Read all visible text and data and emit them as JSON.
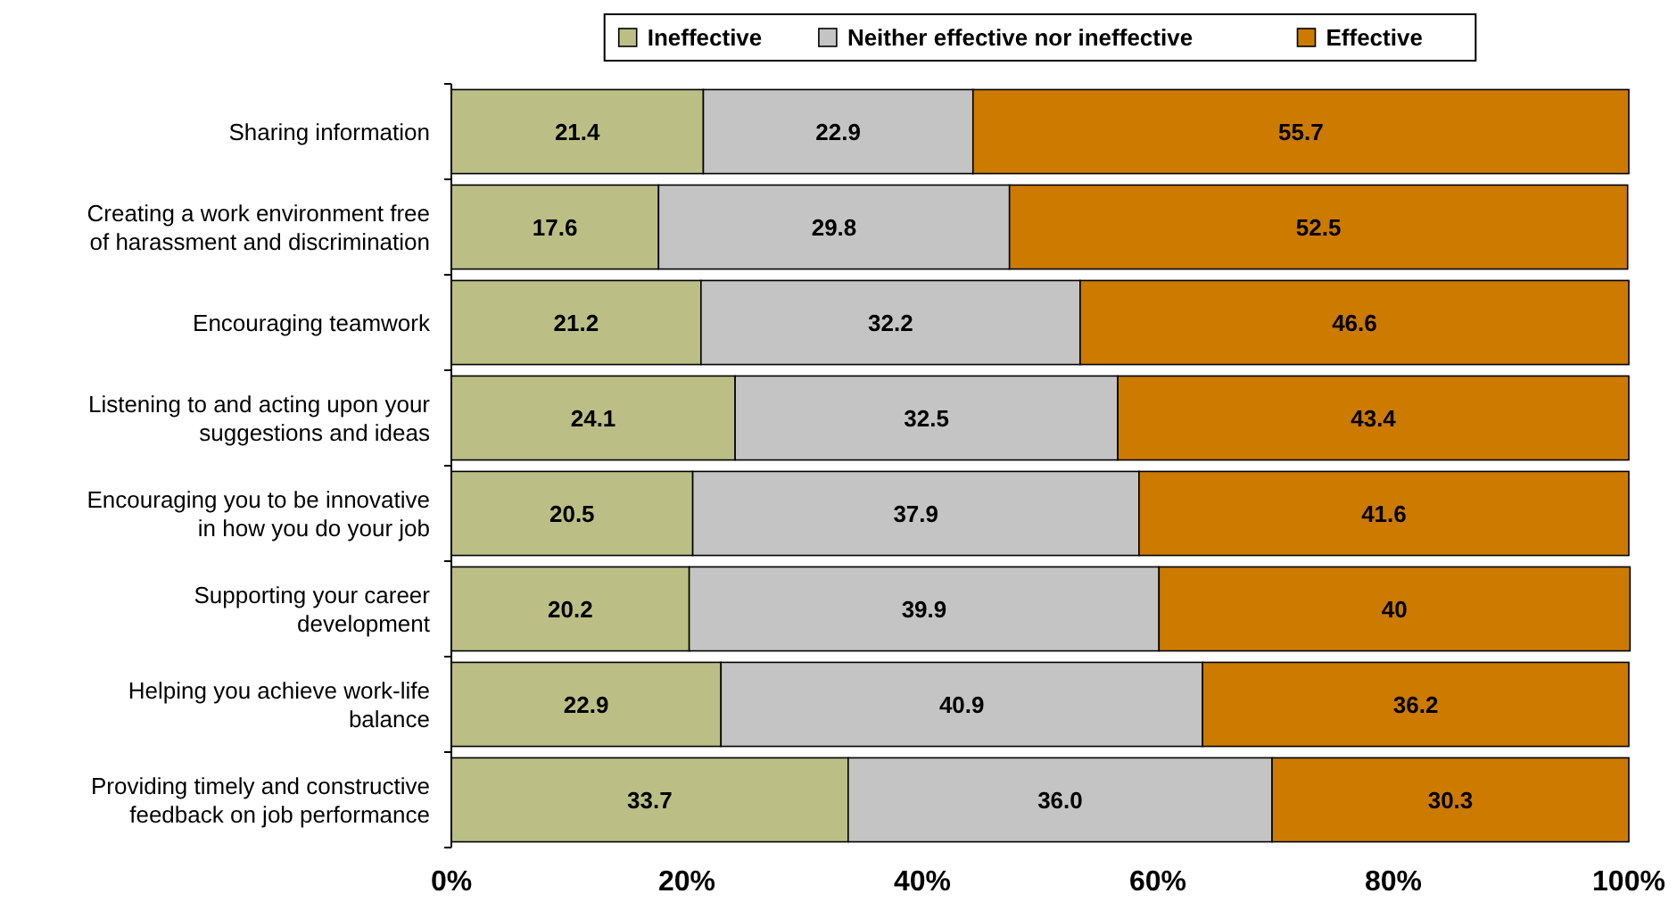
{
  "chart_data": {
    "type": "bar",
    "orientation": "horizontal",
    "stacked": true,
    "legend": "top",
    "categories": [
      "Sharing information",
      "Creating a work environment free of harassment and discrimination",
      "Encouraging teamwork",
      "Listening to and acting upon your suggestions and ideas",
      "Encouraging you to be innovative in how you do your job",
      "Supporting your career development",
      "Helping you achieve work-life balance",
      "Providing timely and constructive feedback on job performance"
    ],
    "series": [
      {
        "name": "Ineffective",
        "color": "#bcbf85",
        "values": [
          21.4,
          17.6,
          21.2,
          24.1,
          20.5,
          20.2,
          22.9,
          33.7
        ],
        "value_labels": [
          "21.4",
          "17.6",
          "21.2",
          "24.1",
          "20.5",
          "20.2",
          "22.9",
          "33.7"
        ]
      },
      {
        "name": "Neither effective nor ineffective",
        "color": "#c4c4c4",
        "values": [
          22.9,
          29.8,
          32.2,
          32.5,
          37.9,
          39.9,
          40.9,
          36.0
        ],
        "value_labels": [
          "22.9",
          "29.8",
          "32.2",
          "32.5",
          "37.9",
          "39.9",
          "40.9",
          "36.0"
        ]
      },
      {
        "name": "Effective",
        "color": "#cc7a00",
        "values": [
          55.7,
          52.5,
          46.6,
          43.4,
          41.6,
          40,
          36.2,
          30.3
        ],
        "value_labels": [
          "55.7",
          "52.5",
          "46.6",
          "43.4",
          "41.6",
          "40",
          "36.2",
          "30.3"
        ]
      }
    ],
    "xlim": [
      0,
      100
    ],
    "xticks": [
      {
        "value": 0,
        "label": "0%"
      },
      {
        "value": 20,
        "label": "20%"
      },
      {
        "value": 40,
        "label": "40%"
      },
      {
        "value": 60,
        "label": "60%"
      },
      {
        "value": 80,
        "label": "80%"
      },
      {
        "value": 100,
        "label": "100%"
      }
    ]
  }
}
